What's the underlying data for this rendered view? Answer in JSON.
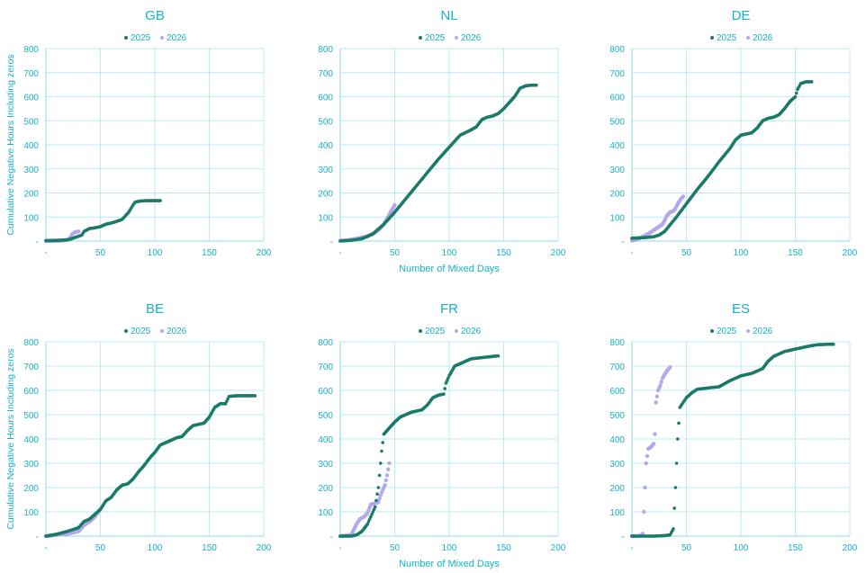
{
  "colors": {
    "accent": "#16b2c6",
    "grid": "#b7edf3",
    "series_2025": "#1b7a68",
    "series_2026": "#b3a8ee"
  },
  "y_axis_title": "Cumulative Negative Hours Including zeros",
  "x_axis_title": "Number of Mixed Days",
  "chart_data": [
    {
      "type": "scatter",
      "title": "GB",
      "xlim": [
        0,
        200
      ],
      "ylim": [
        0,
        800
      ],
      "x_ticks": [
        "-",
        "50",
        "100",
        "150",
        "200"
      ],
      "y_ticks": [
        "-",
        "100",
        "200",
        "300",
        "400",
        "500",
        "600",
        "700",
        "800"
      ],
      "legend": "top-center",
      "series": [
        {
          "name": "2025",
          "points": [
            [
              0,
              2
            ],
            [
              10,
              3
            ],
            [
              20,
              5
            ],
            [
              25,
              12
            ],
            [
              30,
              20
            ],
            [
              33,
              25
            ],
            [
              35,
              40
            ],
            [
              40,
              52
            ],
            [
              45,
              55
            ],
            [
              50,
              60
            ],
            [
              55,
              70
            ],
            [
              60,
              75
            ],
            [
              65,
              82
            ],
            [
              70,
              90
            ],
            [
              73,
              105
            ],
            [
              76,
              120
            ],
            [
              78,
              135
            ],
            [
              80,
              150
            ],
            [
              82,
              162
            ],
            [
              86,
              166
            ],
            [
              92,
              168
            ],
            [
              100,
              168
            ],
            [
              105,
              168
            ]
          ]
        },
        {
          "name": "2026",
          "points": [
            [
              0,
              0
            ],
            [
              5,
              0
            ],
            [
              10,
              1
            ],
            [
              15,
              2
            ],
            [
              18,
              4
            ],
            [
              22,
              10
            ],
            [
              24,
              28
            ],
            [
              26,
              35
            ],
            [
              28,
              38
            ],
            [
              30,
              40
            ]
          ]
        }
      ]
    },
    {
      "type": "scatter",
      "title": "NL",
      "xlim": [
        0,
        200
      ],
      "ylim": [
        0,
        800
      ],
      "x_ticks": [
        "-",
        "50",
        "100",
        "150",
        "200"
      ],
      "y_ticks": [
        "-",
        "100",
        "200",
        "300",
        "400",
        "500",
        "600",
        "700",
        "800"
      ],
      "legend": "top-center",
      "series": [
        {
          "name": "2025",
          "points": [
            [
              0,
              0
            ],
            [
              10,
              3
            ],
            [
              20,
              10
            ],
            [
              30,
              30
            ],
            [
              40,
              70
            ],
            [
              50,
              120
            ],
            [
              60,
              175
            ],
            [
              70,
              230
            ],
            [
              80,
              285
            ],
            [
              90,
              340
            ],
            [
              100,
              390
            ],
            [
              110,
              440
            ],
            [
              120,
              462
            ],
            [
              125,
              475
            ],
            [
              130,
              505
            ],
            [
              135,
              515
            ],
            [
              140,
              520
            ],
            [
              145,
              530
            ],
            [
              150,
              550
            ],
            [
              155,
              575
            ],
            [
              160,
              600
            ],
            [
              165,
              635
            ],
            [
              170,
              645
            ],
            [
              175,
              648
            ],
            [
              180,
              648
            ]
          ]
        },
        {
          "name": "2026",
          "points": [
            [
              0,
              2
            ],
            [
              5,
              3
            ],
            [
              10,
              6
            ],
            [
              15,
              10
            ],
            [
              20,
              15
            ],
            [
              25,
              20
            ],
            [
              30,
              30
            ],
            [
              35,
              45
            ],
            [
              40,
              70
            ],
            [
              45,
              110
            ],
            [
              50,
              150
            ]
          ]
        }
      ]
    },
    {
      "type": "scatter",
      "title": "DE",
      "xlim": [
        0,
        200
      ],
      "ylim": [
        0,
        800
      ],
      "x_ticks": [
        "-",
        "50",
        "100",
        "150",
        "200"
      ],
      "y_ticks": [
        "-",
        "100",
        "200",
        "300",
        "400",
        "500",
        "600",
        "700",
        "800"
      ],
      "legend": "top-center",
      "series": [
        {
          "name": "2025",
          "points": [
            [
              0,
              12
            ],
            [
              10,
              14
            ],
            [
              20,
              18
            ],
            [
              25,
              25
            ],
            [
              30,
              40
            ],
            [
              40,
              95
            ],
            [
              50,
              155
            ],
            [
              60,
              215
            ],
            [
              70,
              270
            ],
            [
              80,
              330
            ],
            [
              90,
              385
            ],
            [
              95,
              420
            ],
            [
              100,
              440
            ],
            [
              105,
              445
            ],
            [
              110,
              450
            ],
            [
              115,
              470
            ],
            [
              120,
              500
            ],
            [
              125,
              510
            ],
            [
              130,
              515
            ],
            [
              135,
              525
            ],
            [
              140,
              550
            ],
            [
              145,
              580
            ],
            [
              150,
              600
            ],
            [
              152,
              630
            ],
            [
              155,
              655
            ],
            [
              160,
              662
            ],
            [
              165,
              662
            ]
          ]
        },
        {
          "name": "2026",
          "points": [
            [
              0,
              2
            ],
            [
              5,
              8
            ],
            [
              10,
              18
            ],
            [
              15,
              30
            ],
            [
              20,
              45
            ],
            [
              25,
              60
            ],
            [
              28,
              70
            ],
            [
              30,
              85
            ],
            [
              32,
              105
            ],
            [
              35,
              120
            ],
            [
              38,
              125
            ],
            [
              40,
              135
            ],
            [
              42,
              155
            ],
            [
              45,
              175
            ],
            [
              47,
              185
            ]
          ]
        }
      ]
    },
    {
      "type": "scatter",
      "title": "BE",
      "xlim": [
        0,
        200
      ],
      "ylim": [
        0,
        800
      ],
      "x_ticks": [
        "-",
        "50",
        "100",
        "150",
        "200"
      ],
      "y_ticks": [
        "-",
        "100",
        "200",
        "300",
        "400",
        "500",
        "600",
        "700",
        "800"
      ],
      "legend": "top-center",
      "series": [
        {
          "name": "2025",
          "points": [
            [
              0,
              0
            ],
            [
              10,
              8
            ],
            [
              20,
              20
            ],
            [
              30,
              35
            ],
            [
              35,
              60
            ],
            [
              40,
              70
            ],
            [
              45,
              90
            ],
            [
              50,
              110
            ],
            [
              55,
              145
            ],
            [
              60,
              160
            ],
            [
              65,
              190
            ],
            [
              70,
              210
            ],
            [
              75,
              215
            ],
            [
              80,
              235
            ],
            [
              85,
              265
            ],
            [
              90,
              290
            ],
            [
              95,
              320
            ],
            [
              100,
              345
            ],
            [
              105,
              375
            ],
            [
              110,
              385
            ],
            [
              115,
              395
            ],
            [
              120,
              405
            ],
            [
              125,
              410
            ],
            [
              130,
              435
            ],
            [
              135,
              455
            ],
            [
              140,
              460
            ],
            [
              145,
              465
            ],
            [
              150,
              490
            ],
            [
              155,
              530
            ],
            [
              160,
              545
            ],
            [
              165,
              545
            ],
            [
              168,
              575
            ],
            [
              175,
              578
            ],
            [
              185,
              578
            ],
            [
              192,
              578
            ]
          ]
        },
        {
          "name": "2026",
          "points": [
            [
              0,
              0
            ],
            [
              10,
              5
            ],
            [
              20,
              10
            ],
            [
              30,
              20
            ],
            [
              35,
              45
            ],
            [
              40,
              60
            ],
            [
              45,
              80
            ],
            [
              48,
              100
            ],
            [
              50,
              110
            ]
          ]
        }
      ]
    },
    {
      "type": "scatter",
      "title": "FR",
      "xlim": [
        0,
        200
      ],
      "ylim": [
        0,
        800
      ],
      "x_ticks": [
        "-",
        "50",
        "100",
        "150",
        "200"
      ],
      "y_ticks": [
        "-",
        "100",
        "200",
        "300",
        "400",
        "500",
        "600",
        "700",
        "800"
      ],
      "legend": "top-center",
      "series": [
        {
          "name": "2025",
          "points": [
            [
              0,
              0
            ],
            [
              10,
              0
            ],
            [
              15,
              5
            ],
            [
              20,
              20
            ],
            [
              25,
              50
            ],
            [
              28,
              80
            ],
            [
              30,
              100
            ],
            [
              32,
              120
            ],
            [
              35,
              200
            ],
            [
              38,
              350
            ],
            [
              40,
              420
            ],
            [
              45,
              445
            ],
            [
              50,
              470
            ],
            [
              55,
              490
            ],
            [
              60,
              500
            ],
            [
              65,
              510
            ],
            [
              70,
              515
            ],
            [
              75,
              520
            ],
            [
              80,
              540
            ],
            [
              85,
              570
            ],
            [
              90,
              580
            ],
            [
              95,
              585
            ],
            [
              97,
              630
            ],
            [
              100,
              660
            ],
            [
              105,
              700
            ],
            [
              110,
              710
            ],
            [
              115,
              720
            ],
            [
              120,
              730
            ],
            [
              130,
              735
            ],
            [
              140,
              740
            ],
            [
              145,
              742
            ]
          ]
        },
        {
          "name": "2026",
          "points": [
            [
              0,
              0
            ],
            [
              5,
              2
            ],
            [
              10,
              5
            ],
            [
              15,
              50
            ],
            [
              18,
              70
            ],
            [
              22,
              80
            ],
            [
              25,
              95
            ],
            [
              28,
              130
            ],
            [
              32,
              135
            ],
            [
              35,
              140
            ],
            [
              38,
              180
            ],
            [
              41,
              210
            ],
            [
              43,
              250
            ],
            [
              45,
              300
            ]
          ]
        }
      ]
    },
    {
      "type": "scatter",
      "title": "ES",
      "xlim": [
        0,
        200
      ],
      "ylim": [
        0,
        800
      ],
      "x_ticks": [
        "-",
        "50",
        "100",
        "150",
        "200"
      ],
      "y_ticks": [
        "-",
        "100",
        "200",
        "300",
        "400",
        "500",
        "600",
        "700",
        "800"
      ],
      "legend": "top-center",
      "series": [
        {
          "name": "2025",
          "points": [
            [
              0,
              0
            ],
            [
              10,
              0
            ],
            [
              20,
              0
            ],
            [
              30,
              2
            ],
            [
              35,
              5
            ],
            [
              38,
              30
            ],
            [
              40,
              200
            ],
            [
              42,
              400
            ],
            [
              44,
              530
            ],
            [
              47,
              550
            ],
            [
              50,
              570
            ],
            [
              55,
              590
            ],
            [
              60,
              605
            ],
            [
              70,
              610
            ],
            [
              80,
              615
            ],
            [
              90,
              640
            ],
            [
              100,
              660
            ],
            [
              110,
              670
            ],
            [
              120,
              690
            ],
            [
              125,
              720
            ],
            [
              130,
              740
            ],
            [
              140,
              760
            ],
            [
              150,
              770
            ],
            [
              160,
              780
            ],
            [
              170,
              788
            ],
            [
              180,
              790
            ],
            [
              185,
              790
            ]
          ]
        },
        {
          "name": "2026",
          "points": [
            [
              0,
              0
            ],
            [
              5,
              0
            ],
            [
              8,
              2
            ],
            [
              10,
              10
            ],
            [
              11,
              100
            ],
            [
              12,
              200
            ],
            [
              13,
              300
            ],
            [
              15,
              360
            ],
            [
              17,
              365
            ],
            [
              20,
              380
            ],
            [
              21,
              420
            ],
            [
              22,
              550
            ],
            [
              24,
              600
            ],
            [
              26,
              620
            ],
            [
              28,
              650
            ],
            [
              30,
              665
            ],
            [
              32,
              680
            ],
            [
              35,
              695
            ]
          ]
        }
      ]
    }
  ]
}
